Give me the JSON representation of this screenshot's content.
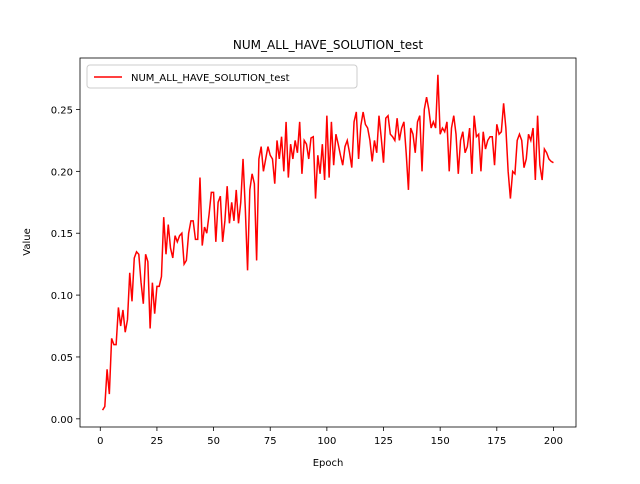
{
  "chart_data": {
    "type": "line",
    "title": "NUM_ALL_HAVE_SOLUTION_test",
    "xlabel": "Epoch",
    "ylabel": "Value",
    "x": [
      1,
      2,
      3,
      4,
      5,
      6,
      7,
      8,
      9,
      10,
      11,
      12,
      13,
      14,
      15,
      16,
      17,
      18,
      19,
      20,
      21,
      22,
      23,
      24,
      25,
      26,
      27,
      28,
      29,
      30,
      31,
      32,
      33,
      34,
      35,
      36,
      37,
      38,
      39,
      40,
      41,
      42,
      43,
      44,
      45,
      46,
      47,
      48,
      49,
      50,
      51,
      52,
      53,
      54,
      55,
      56,
      57,
      58,
      59,
      60,
      61,
      62,
      63,
      64,
      65,
      66,
      67,
      68,
      69,
      70,
      71,
      72,
      73,
      74,
      75,
      76,
      77,
      78,
      79,
      80,
      81,
      82,
      83,
      84,
      85,
      86,
      87,
      88,
      89,
      90,
      91,
      92,
      93,
      94,
      95,
      96,
      97,
      98,
      99,
      100,
      101,
      102,
      103,
      104,
      105,
      106,
      107,
      108,
      109,
      110,
      111,
      112,
      113,
      114,
      115,
      116,
      117,
      118,
      119,
      120,
      121,
      122,
      123,
      124,
      125,
      126,
      127,
      128,
      129,
      130,
      131,
      132,
      133,
      134,
      135,
      136,
      137,
      138,
      139,
      140,
      141,
      142,
      143,
      144,
      145,
      146,
      147,
      148,
      149,
      150,
      151,
      152,
      153,
      154,
      155,
      156,
      157,
      158,
      159,
      160,
      161,
      162,
      163,
      164,
      165,
      166,
      167,
      168,
      169,
      170,
      171,
      172,
      173,
      174,
      175,
      176,
      177,
      178,
      179,
      180,
      181,
      182,
      183,
      184,
      185,
      186,
      187,
      188,
      189,
      190,
      191,
      192,
      193,
      194,
      195,
      196,
      197,
      198,
      199,
      200
    ],
    "series": [
      {
        "name": "NUM_ALL_HAVE_SOLUTION_test",
        "color": "#ff0000",
        "values": [
          0.007,
          0.01,
          0.04,
          0.02,
          0.065,
          0.06,
          0.06,
          0.09,
          0.075,
          0.088,
          0.07,
          0.08,
          0.118,
          0.095,
          0.13,
          0.135,
          0.133,
          0.11,
          0.093,
          0.133,
          0.127,
          0.073,
          0.11,
          0.085,
          0.107,
          0.107,
          0.115,
          0.163,
          0.133,
          0.157,
          0.138,
          0.13,
          0.148,
          0.143,
          0.148,
          0.15,
          0.125,
          0.128,
          0.15,
          0.16,
          0.16,
          0.145,
          0.145,
          0.195,
          0.14,
          0.155,
          0.15,
          0.165,
          0.183,
          0.183,
          0.143,
          0.175,
          0.18,
          0.143,
          0.16,
          0.188,
          0.158,
          0.175,
          0.16,
          0.185,
          0.158,
          0.175,
          0.21,
          0.17,
          0.12,
          0.185,
          0.198,
          0.19,
          0.128,
          0.21,
          0.22,
          0.2,
          0.21,
          0.22,
          0.213,
          0.21,
          0.19,
          0.225,
          0.21,
          0.228,
          0.2,
          0.24,
          0.195,
          0.222,
          0.21,
          0.225,
          0.215,
          0.24,
          0.198,
          0.225,
          0.222,
          0.21,
          0.227,
          0.228,
          0.178,
          0.213,
          0.198,
          0.222,
          0.193,
          0.245,
          0.195,
          0.24,
          0.205,
          0.23,
          0.222,
          0.213,
          0.205,
          0.22,
          0.225,
          0.215,
          0.203,
          0.24,
          0.248,
          0.21,
          0.237,
          0.248,
          0.238,
          0.235,
          0.225,
          0.208,
          0.225,
          0.215,
          0.245,
          0.227,
          0.207,
          0.243,
          0.245,
          0.23,
          0.228,
          0.225,
          0.243,
          0.225,
          0.235,
          0.24,
          0.215,
          0.185,
          0.235,
          0.23,
          0.215,
          0.24,
          0.245,
          0.2,
          0.25,
          0.26,
          0.25,
          0.235,
          0.24,
          0.235,
          0.278,
          0.23,
          0.235,
          0.232,
          0.24,
          0.2,
          0.235,
          0.245,
          0.23,
          0.198,
          0.225,
          0.232,
          0.215,
          0.22,
          0.235,
          0.198,
          0.245,
          0.228,
          0.23,
          0.2,
          0.232,
          0.218,
          0.225,
          0.228,
          0.228,
          0.205,
          0.238,
          0.23,
          0.232,
          0.255,
          0.235,
          0.2,
          0.178,
          0.2,
          0.198,
          0.225,
          0.23,
          0.225,
          0.203,
          0.21,
          0.23,
          0.225,
          0.235,
          0.193,
          0.245,
          0.205,
          0.193,
          0.218,
          0.215,
          0.21,
          0.208,
          0.207
        ]
      }
    ],
    "xlim": [
      -8.95,
      209.95
    ],
    "xticks": [
      0,
      25,
      50,
      75,
      100,
      125,
      150,
      175,
      200
    ],
    "ylim": [
      -0.0066,
      0.2916
    ],
    "yticks": [
      {
        "value": 0,
        "label": "0.00"
      },
      {
        "value": 0.05,
        "label": "0.05"
      },
      {
        "value": 0.1,
        "label": "0.10"
      },
      {
        "value": 0.15,
        "label": "0.15"
      },
      {
        "value": 0.2,
        "label": "0.20"
      },
      {
        "value": 0.25,
        "label": "0.25"
      }
    ],
    "legend": "upper left",
    "grid": false
  }
}
